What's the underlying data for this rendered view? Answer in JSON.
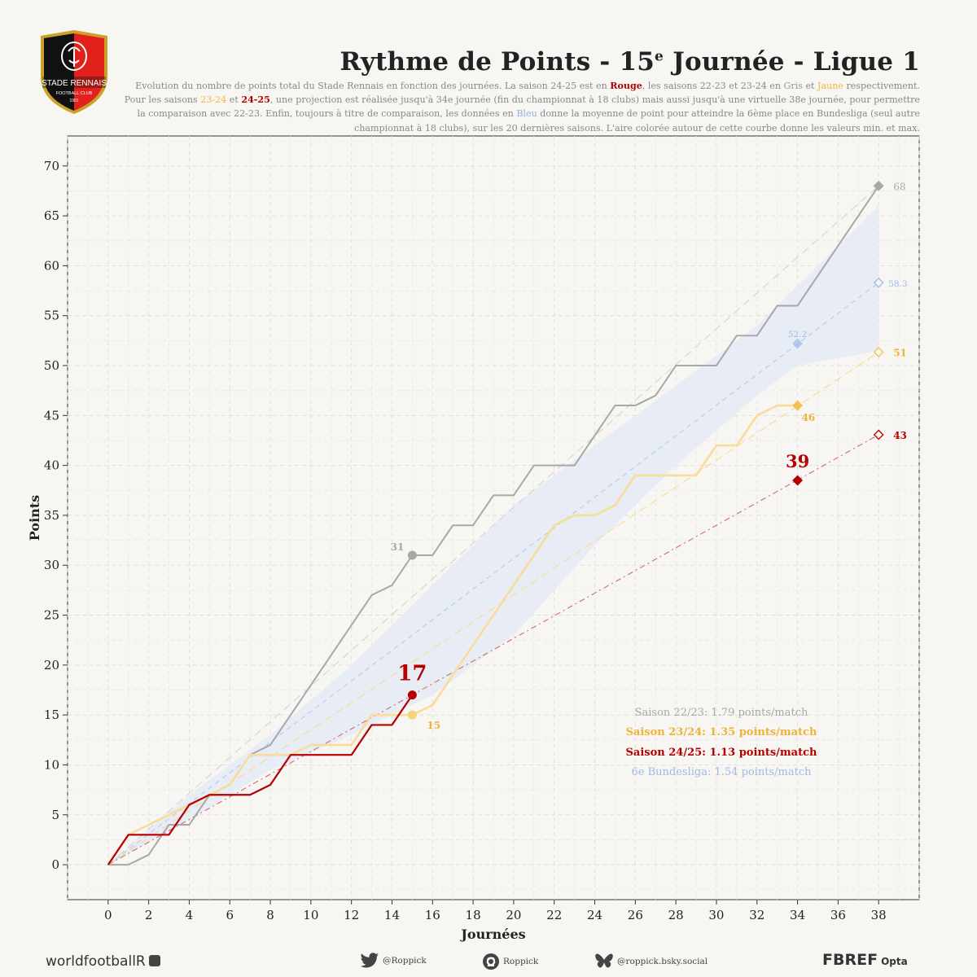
{
  "header": {
    "title_main": "Rythme de Points - 15",
    "title_sup": "e",
    "title_rest": " Journée - Ligue 1",
    "subtitle": [
      {
        "t": "Evolution du nombre de points total du Stade Rennais en fonction des journées. La saison 24-25 est en ",
        "c": ""
      },
      {
        "t": "Rouge",
        "c": "red"
      },
      {
        "t": ", les saisons 22-23 et 23-24 en ",
        "c": ""
      },
      {
        "t": "Gris",
        "c": "grey"
      },
      {
        "t": " et ",
        "c": ""
      },
      {
        "t": "Jaune",
        "c": "yellow"
      },
      {
        "t": " respectivement. Pour les saisons ",
        "c": ""
      },
      {
        "t": "23-24",
        "c": "yellow"
      },
      {
        "t": "  et ",
        "c": ""
      },
      {
        "t": "24-25",
        "c": "red"
      },
      {
        "t": ", une projection est réalisée jusqu'à 34e journée (fin du championnat à 18 clubs) mais aussi jusqu'à une virtuelle 38e journée, pour permettre la comparaison avec 22-23. Enfin, toujours à titre de comparaison, les données en ",
        "c": ""
      },
      {
        "t": "Bleu",
        "c": "blue"
      },
      {
        "t": " donne la moyenne de point pour atteindre la 6ème place en Bundesliga (seul autre championnat à 18 clubs), sur les 20 dernières saisons. L'aire colorée autour de cette courbe donne les valeurs min. et max.",
        "c": ""
      }
    ]
  },
  "crest": {
    "club_name": "STADE RENNAIS",
    "club_sub": "FOOTBALL CLUB",
    "year": "1901",
    "colors": {
      "red": "#e2211c",
      "black": "#111111",
      "gold": "#c9a227"
    }
  },
  "colors": {
    "s2223": "#a8a8a8",
    "s2324": "#f3c14e",
    "s2324_line": "#f7dc9a",
    "s2425": "#b40000",
    "bundes": "#9dbbe6",
    "band": "#e6ebf4"
  },
  "chart_data": {
    "type": "line",
    "xlabel": "Journées",
    "ylabel": "Points",
    "xlim": [
      -2,
      40
    ],
    "ylim": [
      -3.5,
      73
    ],
    "xticks": [
      0,
      2,
      4,
      6,
      8,
      10,
      12,
      14,
      16,
      18,
      20,
      22,
      24,
      26,
      28,
      30,
      32,
      34,
      36,
      38
    ],
    "yticks": [
      0,
      5,
      10,
      15,
      20,
      25,
      30,
      35,
      40,
      45,
      50,
      55,
      60,
      65,
      70
    ],
    "grid": true,
    "series": [
      {
        "name": "Saison 22/23",
        "x": [
          0,
          1,
          2,
          3,
          4,
          5,
          6,
          7,
          8,
          9,
          10,
          11,
          12,
          13,
          14,
          15,
          16,
          17,
          18,
          19,
          20,
          21,
          22,
          23,
          24,
          25,
          26,
          27,
          28,
          29,
          30,
          31,
          32,
          33,
          34,
          35,
          36,
          37,
          38
        ],
        "y": [
          0,
          0,
          1,
          4,
          4,
          7,
          8,
          11,
          12,
          15,
          18,
          21,
          24,
          27,
          28,
          31,
          31,
          34,
          34,
          37,
          37,
          40,
          40,
          40,
          43,
          46,
          46,
          47,
          50,
          50,
          50,
          53,
          53,
          56,
          56,
          59,
          62,
          65,
          68
        ]
      },
      {
        "name": "Saison 23/24",
        "x": [
          0,
          1,
          2,
          3,
          4,
          5,
          6,
          7,
          8,
          9,
          10,
          11,
          12,
          13,
          14,
          15,
          16,
          17,
          18,
          19,
          20,
          21,
          22,
          23,
          24,
          25,
          26,
          27,
          28,
          29,
          30,
          31,
          32,
          33,
          34
        ],
        "y": [
          0,
          3,
          4,
          5,
          6,
          7,
          8,
          11,
          11,
          11,
          12,
          12,
          12,
          15,
          15,
          15,
          16,
          19,
          22,
          25,
          28,
          31,
          34,
          35,
          35,
          36,
          39,
          39,
          39,
          39,
          42,
          42,
          45,
          46,
          46
        ]
      },
      {
        "name": "Saison 24/25",
        "x": [
          0,
          1,
          2,
          3,
          4,
          5,
          6,
          7,
          8,
          9,
          10,
          11,
          12,
          13,
          14,
          15
        ],
        "y": [
          0,
          3,
          3,
          3,
          6,
          7,
          7,
          7,
          8,
          11,
          11,
          11,
          11,
          14,
          14,
          17
        ]
      },
      {
        "name": "6e Bundesliga",
        "x": [
          0,
          34
        ],
        "y": [
          0,
          52.2
        ],
        "band_x": [
          0,
          4,
          8,
          12,
          16,
          20,
          24,
          28,
          32,
          34,
          38
        ],
        "band_min": [
          0,
          4.5,
          9.5,
          13,
          17,
          23,
          32,
          40,
          47,
          50,
          51.5
        ],
        "band_max": [
          0,
          7,
          13,
          20,
          28,
          36,
          42,
          48,
          54,
          58,
          66
        ]
      }
    ],
    "projections": [
      {
        "series": "Saison 22/23",
        "x": [
          0,
          38
        ],
        "y": [
          0,
          68
        ]
      },
      {
        "series": "Saison 23/24",
        "x": [
          0,
          38
        ],
        "y": [
          0,
          51.35
        ]
      },
      {
        "series": "Saison 24/25",
        "x": [
          0,
          38
        ],
        "y": [
          0,
          43.07
        ]
      },
      {
        "series": "6e Bundesliga",
        "x": [
          0,
          38
        ],
        "y": [
          0,
          58.3
        ]
      }
    ],
    "markers": [
      {
        "series": "Saison 22/23",
        "x": 15,
        "y": 31,
        "shape": "circle",
        "label": "31"
      },
      {
        "series": "Saison 23/24",
        "x": 15,
        "y": 15,
        "shape": "circle",
        "label": "15"
      },
      {
        "series": "Saison 24/25",
        "x": 15,
        "y": 17,
        "shape": "circle",
        "label": "17"
      },
      {
        "series": "Saison 22/23",
        "x": 38,
        "y": 68,
        "shape": "diamond-filled",
        "label": "68"
      },
      {
        "series": "6e Bundesliga",
        "x": 38,
        "y": 58.3,
        "shape": "diamond-open",
        "label": "58.3"
      },
      {
        "series": "6e Bundesliga",
        "x": 34,
        "y": 52.2,
        "shape": "diamond-filled",
        "label": "52.2"
      },
      {
        "series": "Saison 23/24",
        "x": 38,
        "y": 51.35,
        "shape": "diamond-open",
        "label": "51"
      },
      {
        "series": "Saison 23/24",
        "x": 34,
        "y": 46,
        "shape": "diamond-filled",
        "label": "46"
      },
      {
        "series": "Saison 24/25",
        "x": 38,
        "y": 43.07,
        "shape": "diamond-open",
        "label": "43"
      },
      {
        "series": "Saison 24/25",
        "x": 34,
        "y": 38.5,
        "shape": "diamond-filled",
        "label": "39"
      }
    ],
    "legend": [
      {
        "text": "Saison 22/23: 1.79 points/match",
        "series": "Saison 22/23"
      },
      {
        "text": "Saison 23/24: 1.35 points/match",
        "series": "Saison 23/24"
      },
      {
        "text": "Saison 24/25: 1.13 points/match",
        "series": "Saison 24/25"
      },
      {
        "text": "6e Bundesliga: 1.54 points/match",
        "series": "6e Bundesliga"
      }
    ],
    "legend_position": "bottom-right"
  },
  "footer": {
    "brand": "worldfootballR",
    "twitter_icon": "twitter-bird-icon",
    "twitter": "@Roppick",
    "github_icon": "github-icon",
    "github": "Roppick",
    "bluesky_icon": "butterfly-icon",
    "bluesky": "@roppick.bsky.social",
    "fbref": "FBREF",
    "opta": "Opta"
  }
}
